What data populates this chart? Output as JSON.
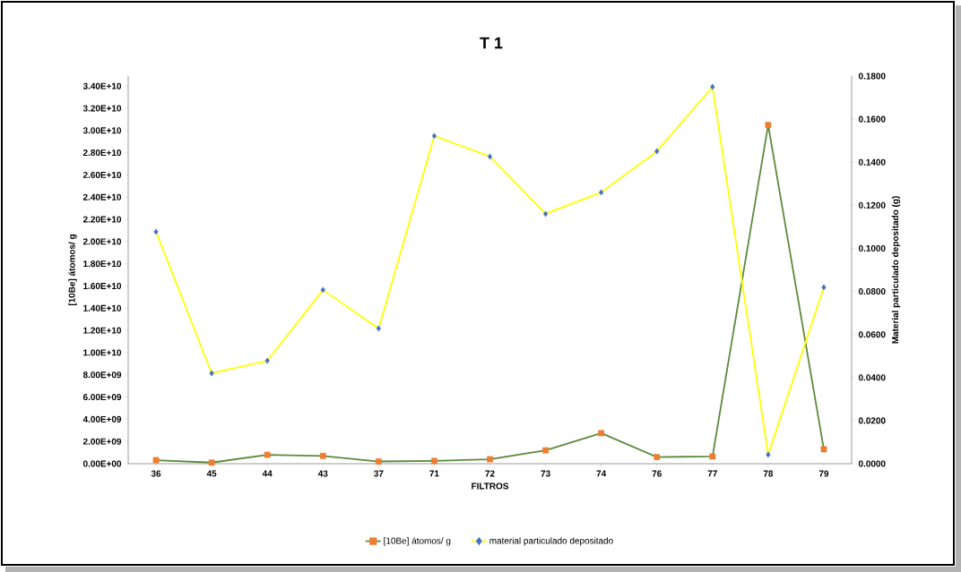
{
  "chart_data": {
    "type": "line",
    "title": "T 1",
    "xlabel": "FILTROS",
    "ylabel": "[10Be] átomos/ g",
    "y2label": "Material particulado depositado (g)",
    "categories": [
      "36",
      "45",
      "44",
      "43",
      "37",
      "71",
      "72",
      "73",
      "74",
      "76",
      "77",
      "78",
      "79"
    ],
    "series": [
      {
        "name": "[10Be] átomos/ g",
        "color": "#5b8a3c",
        "marker": "square",
        "colors": [
          "#ed7d31",
          "#ed7d31",
          "#ed7d31",
          "#ed7d31",
          "#ed7d31",
          "#ed7d31",
          "#ed7d31",
          "#ed7d31",
          "#ed7d31",
          "#ed7d31",
          "#ed7d31",
          "#ed7d31",
          "#ed7d31"
        ],
        "values": [
          320000000.0,
          100000000.0,
          800000000.0,
          700000000.0,
          200000000.0,
          250000000.0,
          400000000.0,
          1200000000.0,
          2750000000.0,
          600000000.0,
          650000000.0,
          30500000000.0,
          1300000000.0
        ]
      },
      {
        "name": "material particulado depositado",
        "color": "#ffff00",
        "marker": "diamond",
        "axis": "y2",
        "colors": [
          "#4472c4",
          "#4472c4",
          "#4472c4",
          "#4472c4",
          "#4472c4",
          "#4472c4",
          "#4472c4",
          "#4472c4",
          "#4472c4",
          "#4472c4",
          "#4472c4",
          "#4472c4",
          "#4472c4"
        ],
        "values": [
          0.1077,
          0.042,
          0.0478,
          0.0807,
          0.0628,
          0.1522,
          0.1426,
          0.116,
          0.126,
          0.1451,
          0.175,
          0.0042,
          0.0819
        ]
      }
    ],
    "ylim": [
      0,
      34900000000.0
    ],
    "yticks": [
      {
        "value": 0,
        "label": "0.00E+00"
      },
      {
        "value": 2000000000.0,
        "label": "2.00E+09"
      },
      {
        "value": 4000000000.0,
        "label": "4.00E+09"
      },
      {
        "value": 6000000000.0,
        "label": "6.00E+09"
      },
      {
        "value": 8000000000.0,
        "label": "8.00E+09"
      },
      {
        "value": 10000000000.0,
        "label": "1.00E+10"
      },
      {
        "value": 12000000000.0,
        "label": "1.20E+10"
      },
      {
        "value": 14000000000.0,
        "label": "1.40E+10"
      },
      {
        "value": 16000000000.0,
        "label": "1.60E+10"
      },
      {
        "value": 18000000000.0,
        "label": "1.80E+10"
      },
      {
        "value": 20000000000.0,
        "label": "2.00E+10"
      },
      {
        "value": 22000000000.0,
        "label": "2.20E+10"
      },
      {
        "value": 24000000000.0,
        "label": "2.40E+10"
      },
      {
        "value": 26000000000.0,
        "label": "2.60E+10"
      },
      {
        "value": 28000000000.0,
        "label": "2.80E+10"
      },
      {
        "value": 30000000000.0,
        "label": "3.00E+10"
      },
      {
        "value": 32000000000.0,
        "label": "3.20E+10"
      },
      {
        "value": 34000000000.0,
        "label": "3.40E+10"
      }
    ],
    "y2lim": [
      0,
      0.18
    ],
    "y2ticks": [
      {
        "value": 0,
        "label": "0.0000"
      },
      {
        "value": 0.02,
        "label": "0.0200"
      },
      {
        "value": 0.04,
        "label": "0.0400"
      },
      {
        "value": 0.06,
        "label": "0.0600"
      },
      {
        "value": 0.08,
        "label": "0.0800"
      },
      {
        "value": 0.1,
        "label": "0.1000"
      },
      {
        "value": 0.12,
        "label": "0.1200"
      },
      {
        "value": 0.14,
        "label": "0.1400"
      },
      {
        "value": 0.16,
        "label": "0.1600"
      },
      {
        "value": 0.18,
        "label": "0.1800"
      }
    ],
    "grid": false,
    "legend": "bottom"
  }
}
